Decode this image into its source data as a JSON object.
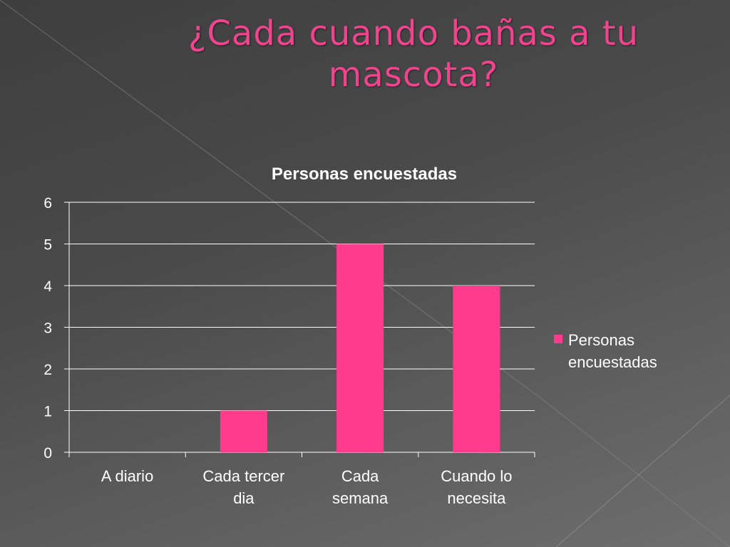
{
  "slide": {
    "title": "¿Cada cuando bañas a tu mascota?"
  },
  "colors": {
    "title": "#f0448e",
    "bar": "#ff3b8d",
    "text": "#ffffff",
    "grid": "#ffffff"
  },
  "chart_data": {
    "type": "bar",
    "title": "Personas encuestadas",
    "categories": [
      [
        "A diario"
      ],
      [
        "Cada tercer",
        "dia"
      ],
      [
        "Cada",
        "semana"
      ],
      [
        "Cuando lo",
        "necesita"
      ]
    ],
    "series": [
      {
        "name": "Personas encuestadas",
        "legend_lines": [
          "Personas",
          "encuestadas"
        ],
        "values": [
          0,
          1,
          5,
          4
        ]
      }
    ],
    "ylim": [
      0,
      6
    ],
    "yticks": [
      0,
      1,
      2,
      3,
      4,
      5,
      6
    ],
    "grid": true,
    "legend_position": "right"
  }
}
